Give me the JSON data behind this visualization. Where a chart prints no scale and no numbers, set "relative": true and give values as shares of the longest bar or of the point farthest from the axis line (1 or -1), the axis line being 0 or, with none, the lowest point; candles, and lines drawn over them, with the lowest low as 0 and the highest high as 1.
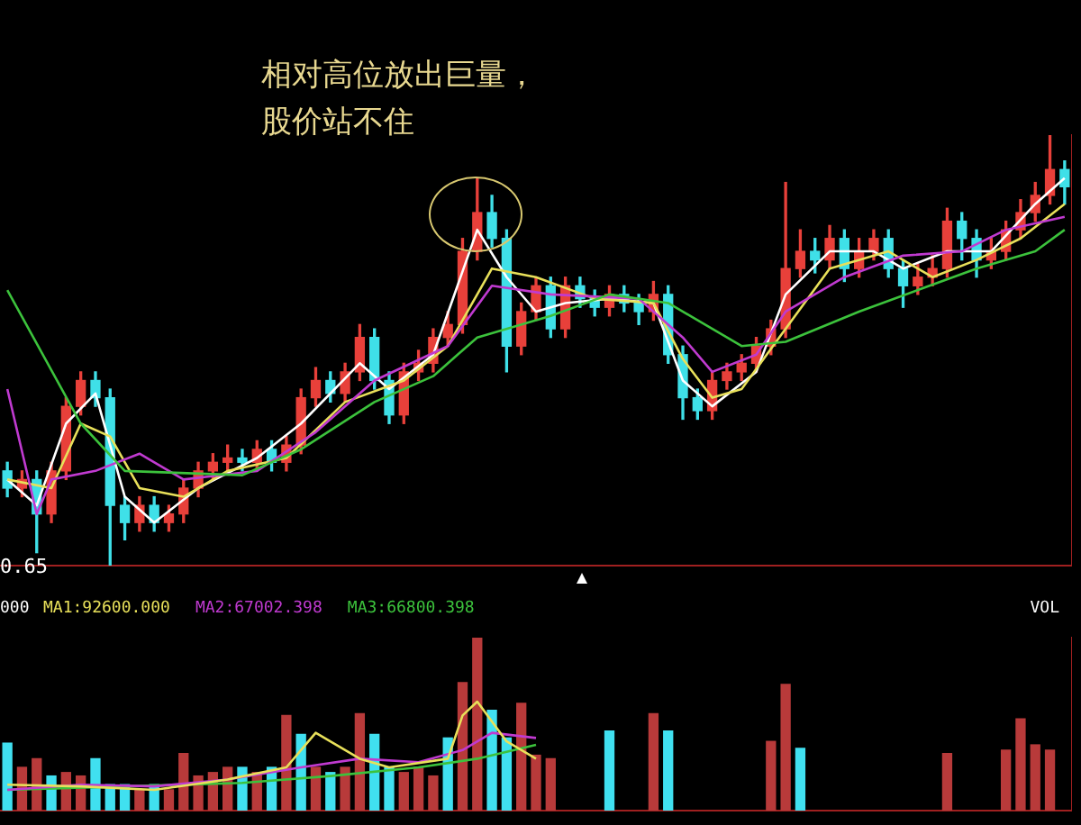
{
  "chart_data": [
    {
      "type": "candlestick",
      "relative": true,
      "categories": [
        null,
        null,
        null,
        null,
        null,
        null,
        null,
        null,
        null,
        null,
        null,
        null,
        null,
        null,
        null,
        null,
        null,
        null,
        null,
        null,
        null,
        null,
        null,
        null,
        null,
        null,
        null,
        null,
        null,
        null,
        null,
        null,
        null,
        null,
        null,
        null,
        null,
        null,
        null,
        null,
        null,
        null,
        null,
        null,
        null,
        null,
        null,
        null,
        null,
        null,
        null,
        null,
        null,
        null,
        null,
        null,
        null,
        null,
        null,
        null,
        null,
        null,
        null,
        null,
        null,
        null,
        null,
        null,
        null,
        null,
        null,
        null,
        null
      ],
      "ohlc": [
        [
          0.22,
          0.24,
          0.16,
          0.18
        ],
        [
          0.18,
          0.22,
          0.16,
          0.2
        ],
        [
          0.2,
          0.22,
          0.03,
          0.12
        ],
        [
          0.12,
          0.24,
          0.1,
          0.22
        ],
        [
          0.22,
          0.39,
          0.2,
          0.37
        ],
        [
          0.37,
          0.45,
          0.35,
          0.43
        ],
        [
          0.43,
          0.45,
          0.37,
          0.39
        ],
        [
          0.39,
          0.41,
          0,
          0.14
        ],
        [
          0.14,
          0.16,
          0.06,
          0.1
        ],
        [
          0.1,
          0.16,
          0.08,
          0.14
        ],
        [
          0.14,
          0.16,
          0.08,
          0.1
        ],
        [
          0.1,
          0.14,
          0.08,
          0.12
        ],
        [
          0.12,
          0.2,
          0.1,
          0.18
        ],
        [
          0.18,
          0.24,
          0.16,
          0.22
        ],
        [
          0.22,
          0.26,
          0.2,
          0.24
        ],
        [
          0.24,
          0.28,
          0.22,
          0.25
        ],
        [
          0.25,
          0.27,
          0.22,
          0.24
        ],
        [
          0.24,
          0.29,
          0.22,
          0.27
        ],
        [
          0.27,
          0.29,
          0.22,
          0.24
        ],
        [
          0.24,
          0.3,
          0.22,
          0.28
        ],
        [
          0.28,
          0.41,
          0.26,
          0.39
        ],
        [
          0.39,
          0.46,
          0.37,
          0.43
        ],
        [
          0.43,
          0.45,
          0.38,
          0.4
        ],
        [
          0.4,
          0.47,
          0.38,
          0.45
        ],
        [
          0.45,
          0.56,
          0.43,
          0.53
        ],
        [
          0.53,
          0.55,
          0.41,
          0.43
        ],
        [
          0.43,
          0.45,
          0.33,
          0.35
        ],
        [
          0.35,
          0.47,
          0.33,
          0.45
        ],
        [
          0.45,
          0.5,
          0.43,
          0.47
        ],
        [
          0.47,
          0.55,
          0.45,
          0.53
        ],
        [
          0.53,
          0.59,
          0.51,
          0.56
        ],
        [
          0.56,
          0.76,
          0.54,
          0.73
        ],
        [
          0.73,
          0.9,
          0.71,
          0.82
        ],
        [
          0.82,
          0.86,
          0.74,
          0.76
        ],
        [
          0.76,
          0.78,
          0.45,
          0.51
        ],
        [
          0.51,
          0.61,
          0.49,
          0.59
        ],
        [
          0.59,
          0.67,
          0.57,
          0.65
        ],
        [
          0.65,
          0.67,
          0.53,
          0.55
        ],
        [
          0.55,
          0.67,
          0.53,
          0.65
        ],
        [
          0.65,
          0.67,
          0.6,
          0.62
        ],
        [
          0.62,
          0.64,
          0.58,
          0.6
        ],
        [
          0.6,
          0.65,
          0.58,
          0.63
        ],
        [
          0.63,
          0.65,
          0.59,
          0.61
        ],
        [
          0.61,
          0.63,
          0.56,
          0.59
        ],
        [
          0.59,
          0.66,
          0.57,
          0.63
        ],
        [
          0.63,
          0.65,
          0.47,
          0.49
        ],
        [
          0.49,
          0.51,
          0.34,
          0.39
        ],
        [
          0.39,
          0.41,
          0.34,
          0.36
        ],
        [
          0.36,
          0.45,
          0.34,
          0.43
        ],
        [
          0.43,
          0.47,
          0.41,
          0.45
        ],
        [
          0.45,
          0.49,
          0.43,
          0.47
        ],
        [
          0.47,
          0.53,
          0.45,
          0.51
        ],
        [
          0.51,
          0.57,
          0.49,
          0.55
        ],
        [
          0.55,
          0.89,
          0.53,
          0.69
        ],
        [
          0.69,
          0.78,
          0.67,
          0.73
        ],
        [
          0.73,
          0.76,
          0.68,
          0.71
        ],
        [
          0.71,
          0.79,
          0.69,
          0.76
        ],
        [
          0.76,
          0.78,
          0.66,
          0.69
        ],
        [
          0.69,
          0.76,
          0.67,
          0.73
        ],
        [
          0.73,
          0.78,
          0.71,
          0.76
        ],
        [
          0.76,
          0.78,
          0.67,
          0.69
        ],
        [
          0.69,
          0.71,
          0.6,
          0.65
        ],
        [
          0.65,
          0.7,
          0.63,
          0.67
        ],
        [
          0.67,
          0.72,
          0.65,
          0.69
        ],
        [
          0.69,
          0.83,
          0.67,
          0.8
        ],
        [
          0.8,
          0.82,
          0.71,
          0.76
        ],
        [
          0.76,
          0.78,
          0.67,
          0.71
        ],
        [
          0.71,
          0.76,
          0.69,
          0.73
        ],
        [
          0.73,
          0.8,
          0.71,
          0.78
        ],
        [
          0.78,
          0.85,
          0.76,
          0.82
        ],
        [
          0.82,
          0.89,
          0.8,
          0.86
        ],
        [
          0.86,
          1.0,
          0.84,
          0.92
        ],
        [
          0.92,
          0.94,
          0.84,
          0.88
        ]
      ],
      "colors": [
        "#3fe0e8",
        "#e8403a",
        "#3fe0e8",
        "#e8403a",
        "#e8403a",
        "#e8403a",
        "#3fe0e8",
        "#3fe0e8",
        "#3fe0e8",
        "#e8403a",
        "#3fe0e8",
        "#e8403a",
        "#e8403a",
        "#e8403a",
        "#e8403a",
        "#e8403a",
        "#3fe0e8",
        "#e8403a",
        "#3fe0e8",
        "#e8403a",
        "#e8403a",
        "#e8403a",
        "#3fe0e8",
        "#e8403a",
        "#e8403a",
        "#3fe0e8",
        "#3fe0e8",
        "#e8403a",
        "#e8403a",
        "#e8403a",
        "#e8403a",
        "#e8403a",
        "#e8403a",
        "#3fe0e8",
        "#3fe0e8",
        "#e8403a",
        "#e8403a",
        "#3fe0e8",
        "#e8403a",
        "#3fe0e8",
        "#3fe0e8",
        "#e8403a",
        "#3fe0e8",
        "#3fe0e8",
        "#e8403a",
        "#3fe0e8",
        "#3fe0e8",
        "#3fe0e8",
        "#e8403a",
        "#e8403a",
        "#e8403a",
        "#e8403a",
        "#e8403a",
        "#e8403a",
        "#e8403a",
        "#3fe0e8",
        "#e8403a",
        "#3fe0e8",
        "#e8403a",
        "#e8403a",
        "#3fe0e8",
        "#3fe0e8",
        "#e8403a",
        "#e8403a",
        "#e8403a",
        "#3fe0e8",
        "#3fe0e8",
        "#e8403a",
        "#e8403a",
        "#e8403a",
        "#e8403a",
        "#e8403a",
        "#3fe0e8"
      ],
      "series": [
        {
          "type": "line",
          "color": "#3cc23c",
          "values": [
            0.64,
            null,
            null,
            null,
            null,
            0.33,
            null,
            null,
            0.22,
            null,
            null,
            null,
            null,
            null,
            null,
            null,
            0.21,
            null,
            null,
            null,
            0.27,
            null,
            null,
            null,
            null,
            0.38,
            null,
            null,
            null,
            0.44,
            null,
            null,
            0.53,
            null,
            null,
            null,
            null,
            0.58,
            null,
            null,
            null,
            0.63,
            null,
            null,
            null,
            0.61,
            null,
            null,
            null,
            null,
            0.51,
            null,
            null,
            0.52,
            null,
            null,
            null,
            null,
            0.59,
            null,
            null,
            null,
            0.64,
            null,
            null,
            null,
            0.69,
            null,
            null,
            null,
            0.73,
            null,
            0.78
          ]
        },
        {
          "type": "line",
          "color": "#c03ad0",
          "values": [
            0.41,
            null,
            0.12,
            0.2,
            null,
            null,
            0.22,
            null,
            null,
            0.26,
            null,
            null,
            0.2,
            null,
            null,
            null,
            null,
            0.22,
            null,
            null,
            null,
            0.31,
            null,
            null,
            null,
            0.43,
            null,
            null,
            null,
            null,
            0.51,
            null,
            null,
            0.65,
            null,
            null,
            null,
            0.63,
            null,
            null,
            null,
            null,
            null,
            0.62,
            null,
            null,
            0.53,
            null,
            0.45,
            null,
            null,
            0.49,
            null,
            0.59,
            null,
            null,
            null,
            0.67,
            null,
            null,
            null,
            0.72,
            null,
            null,
            null,
            0.73,
            null,
            null,
            0.78,
            null,
            null,
            null,
            0.81
          ]
        },
        {
          "type": "line",
          "color": "#e8e05a",
          "values": [
            0.2,
            null,
            null,
            0.18,
            null,
            0.33,
            null,
            0.3,
            null,
            0.18,
            null,
            null,
            0.16,
            null,
            null,
            0.22,
            null,
            null,
            null,
            0.25,
            null,
            null,
            null,
            0.38,
            null,
            null,
            null,
            0.43,
            null,
            null,
            0.51,
            null,
            null,
            0.69,
            null,
            null,
            0.67,
            null,
            null,
            null,
            0.62,
            null,
            null,
            null,
            0.61,
            null,
            0.48,
            null,
            0.39,
            null,
            0.41,
            null,
            null,
            0.55,
            null,
            null,
            0.69,
            null,
            null,
            null,
            0.73,
            null,
            null,
            0.67,
            null,
            null,
            0.71,
            null,
            null,
            0.76,
            null,
            null,
            0.84
          ]
        },
        {
          "type": "line",
          "color": "#ffffff",
          "values": [
            0.2,
            null,
            0.14,
            null,
            0.33,
            null,
            0.4,
            null,
            0.16,
            null,
            0.1,
            null,
            null,
            0.18,
            null,
            null,
            null,
            0.25,
            null,
            null,
            0.33,
            null,
            null,
            null,
            0.47,
            null,
            0.41,
            null,
            null,
            0.49,
            null,
            null,
            0.78,
            null,
            0.67,
            null,
            0.59,
            null,
            0.61,
            null,
            null,
            0.62,
            null,
            null,
            0.61,
            null,
            0.43,
            null,
            0.37,
            null,
            null,
            0.45,
            null,
            0.63,
            null,
            null,
            0.73,
            null,
            null,
            0.73,
            null,
            0.69,
            null,
            null,
            0.73,
            null,
            null,
            0.73,
            null,
            null,
            0.84,
            null,
            0.9
          ]
        }
      ],
      "annotations": [
        "相对高位放出巨量，",
        "股价站不住",
        "0.65"
      ]
    },
    {
      "type": "bar",
      "relative": true,
      "legend": "top left",
      "categories": [
        null,
        null,
        null,
        null,
        null,
        null,
        null,
        null,
        null,
        null,
        null,
        null,
        null,
        null,
        null,
        null,
        null,
        null,
        null,
        null,
        null,
        null,
        null,
        null,
        null,
        null,
        null,
        null,
        null,
        null,
        null,
        null,
        null,
        null,
        null,
        null,
        null,
        null,
        null,
        null,
        null,
        null,
        null,
        null,
        null,
        null,
        null,
        null,
        null,
        null,
        null,
        null,
        null,
        null,
        null,
        null,
        null,
        null,
        null,
        null,
        null,
        null,
        null,
        null,
        null,
        null,
        null,
        null,
        null,
        null,
        null,
        null,
        null
      ],
      "values": [
        0.39,
        0.25,
        0.3,
        0.2,
        0.22,
        0.2,
        0.3,
        0.15,
        0.15,
        0.12,
        0.15,
        0.12,
        0.33,
        0.2,
        0.22,
        0.25,
        0.25,
        0.22,
        0.25,
        0.55,
        0.44,
        0.25,
        0.22,
        0.25,
        0.56,
        0.44,
        0.25,
        0.22,
        0.25,
        0.2,
        0.42,
        0.74,
        1.0,
        0.58,
        0.42,
        0.62,
        0.32,
        0.3,
        null,
        null,
        null,
        0.46,
        null,
        null,
        0.56,
        0.46,
        null,
        null,
        null,
        null,
        null,
        null,
        0.4,
        0.73,
        0.36,
        null,
        null,
        null,
        null,
        null,
        null,
        null,
        null,
        null,
        0.33,
        null,
        null,
        null,
        0.35,
        0.53,
        0.38,
        0.35,
        null
      ],
      "colors": [
        "#40e0f0",
        "#b83a3a",
        "#b83a3a",
        "#40e0f0",
        "#b83a3a",
        "#b83a3a",
        "#40e0f0",
        "#40e0f0",
        "#40e0f0",
        "#b83a3a",
        "#40e0f0",
        "#b83a3a",
        "#b83a3a",
        "#b83a3a",
        "#b83a3a",
        "#b83a3a",
        "#40e0f0",
        "#b83a3a",
        "#40e0f0",
        "#b83a3a",
        "#40e0f0",
        "#b83a3a",
        "#40e0f0",
        "#b83a3a",
        "#b83a3a",
        "#40e0f0",
        "#40e0f0",
        "#b83a3a",
        "#b83a3a",
        "#b83a3a",
        "#40e0f0",
        "#b83a3a",
        "#b83a3a",
        "#40e0f0",
        "#40e0f0",
        "#b83a3a",
        "#b83a3a",
        "#b83a3a",
        "#b83a3a",
        "#40e0f0",
        "#40e0f0",
        "#40e0f0",
        "#40e0f0",
        "#40e0f0",
        "#b83a3a",
        "#40e0f0",
        "#40e0f0",
        "#40e0f0",
        "#b83a3a",
        "#b83a3a",
        "#b83a3a",
        "#b83a3a",
        "#b83a3a",
        "#b83a3a",
        "#40e0f0",
        "#40e0f0",
        "#b83a3a",
        "#40e0f0",
        "#b83a3a",
        "#b83a3a",
        "#40e0f0",
        "#40e0f0",
        "#b83a3a",
        "#b83a3a",
        "#b83a3a",
        "#40e0f0",
        "#40e0f0",
        "#b83a3a",
        "#b83a3a",
        "#b83a3a",
        "#b83a3a",
        "#b83a3a",
        "#40e0f0"
      ],
      "series": [
        {
          "name": "MA1:92600.000",
          "type": "line",
          "color": "#e8e05a",
          "values": [
            0.15,
            null,
            null,
            null,
            null,
            0.14,
            null,
            null,
            null,
            null,
            0.12,
            null,
            null,
            null,
            null,
            0.18,
            null,
            null,
            null,
            0.25,
            null,
            0.45,
            null,
            null,
            0.3,
            null,
            0.25,
            null,
            null,
            null,
            0.3,
            0.55,
            0.63,
            null,
            0.4,
            null,
            0.3,
            null,
            null,
            null,
            null,
            null,
            null,
            null,
            null,
            null,
            null,
            null,
            null,
            null,
            null,
            null,
            null,
            null,
            null,
            null,
            null,
            null,
            null,
            null,
            null,
            null,
            null,
            null,
            null,
            null,
            null,
            null,
            null,
            null,
            null,
            null,
            null
          ]
        },
        {
          "name": "MA2:67002.398",
          "type": "line",
          "color": "#c03ad0",
          "values": [
            0.12,
            null,
            null,
            null,
            null,
            0.15,
            null,
            null,
            null,
            null,
            0.14,
            null,
            null,
            null,
            null,
            0.18,
            null,
            null,
            null,
            null,
            0.25,
            null,
            null,
            null,
            0.3,
            null,
            null,
            null,
            0.28,
            null,
            null,
            0.35,
            null,
            0.45,
            null,
            null,
            0.42,
            null,
            null,
            null,
            null,
            null,
            null,
            null,
            null,
            null,
            null,
            null,
            null,
            null,
            null,
            null,
            null,
            null,
            null,
            null,
            null,
            null,
            null,
            null,
            null,
            null,
            null,
            null,
            null,
            null,
            null,
            null,
            null,
            null,
            null,
            null,
            null
          ]
        },
        {
          "name": "MA3:66800.398",
          "type": "line",
          "color": "#3cc23c",
          "values": [
            0.12,
            null,
            null,
            null,
            null,
            null,
            null,
            null,
            0.14,
            null,
            null,
            null,
            null,
            null,
            null,
            null,
            0.16,
            null,
            null,
            null,
            null,
            null,
            0.2,
            null,
            null,
            null,
            null,
            null,
            0.25,
            null,
            null,
            null,
            0.3,
            null,
            null,
            null,
            0.38,
            null,
            null,
            null,
            null,
            null,
            null,
            null,
            null,
            null,
            null,
            null,
            null,
            null,
            null,
            null,
            null,
            null,
            null,
            null,
            null,
            null,
            null,
            null,
            null,
            null,
            null,
            null,
            null,
            null,
            null,
            null,
            null,
            null,
            null,
            null,
            null
          ]
        }
      ],
      "annotations": [
        "000",
        "VOL"
      ]
    }
  ]
}
